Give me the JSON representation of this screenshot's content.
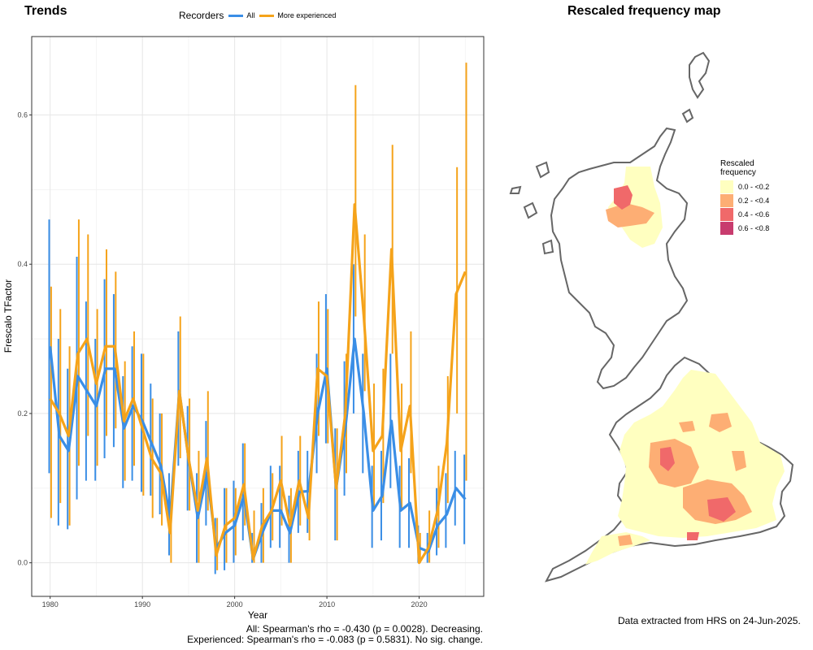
{
  "trends": {
    "title": "Trends",
    "legend_title": "Recorders",
    "legend_all": "All",
    "legend_exp": "More experienced",
    "stats_line1": "All: Spearman's rho = -0.430 (p = 0.0028). Decreasing.",
    "stats_line2": "Experienced: Spearman's rho = -0.083 (p = 0.5831). No sig. change."
  },
  "map": {
    "title": "Rescaled frequency map",
    "legend_title_1": "Rescaled",
    "legend_title_2": "frequency",
    "legend": [
      {
        "label": "0.0 - <0.2",
        "color": "#ffffc0"
      },
      {
        "label": "0.2 - <0.4",
        "color": "#fdae74"
      },
      {
        "label": "0.4 - <0.6",
        "color": "#f0696a"
      },
      {
        "label": "0.6 - <0.8",
        "color": "#c83c6e"
      }
    ],
    "source": "Data extracted from HRS on 24-Jun-2025."
  },
  "chart_data": {
    "type": "line",
    "xlabel": "Year",
    "ylabel": "Frescalo TFactor",
    "xlim": [
      1978,
      2027
    ],
    "ylim": [
      -0.045,
      0.705
    ],
    "xticks": [
      1980,
      1990,
      2000,
      2010,
      2020
    ],
    "yticks": [
      0.0,
      0.2,
      0.4,
      0.6
    ],
    "ytick_labels": [
      "0.0",
      "0.2",
      "0.4",
      "0.6"
    ],
    "grid": true,
    "legend_position": "top",
    "x": [
      1980,
      1981,
      1982,
      1983,
      1984,
      1985,
      1986,
      1987,
      1988,
      1989,
      1990,
      1991,
      1992,
      1993,
      1994,
      1995,
      1996,
      1997,
      1998,
      1999,
      2000,
      2001,
      2002,
      2003,
      2004,
      2005,
      2006,
      2007,
      2008,
      2009,
      2010,
      2011,
      2012,
      2013,
      2014,
      2015,
      2016,
      2017,
      2018,
      2019,
      2020,
      2021,
      2022,
      2023,
      2024,
      2025
    ],
    "series": [
      {
        "name": "All",
        "color": "#3a8ee6",
        "values": [
          0.29,
          0.17,
          0.15,
          0.25,
          0.23,
          0.21,
          0.26,
          0.26,
          0.18,
          0.21,
          0.19,
          0.16,
          0.13,
          0.06,
          0.23,
          0.14,
          0.06,
          0.12,
          0.02,
          0.04,
          0.05,
          0.09,
          0.005,
          0.04,
          0.07,
          0.07,
          0.04,
          0.095,
          0.096,
          0.2,
          0.26,
          0.1,
          0.18,
          0.3,
          0.2,
          0.07,
          0.09,
          0.19,
          0.07,
          0.08,
          0.02,
          0.015,
          0.05,
          0.065,
          0.1,
          0.085
        ],
        "lower": [
          0.12,
          0.05,
          0.045,
          0.085,
          0.11,
          0.11,
          0.14,
          0.155,
          0.1,
          0.11,
          0.095,
          0.09,
          0.065,
          0.01,
          0.13,
          0.07,
          0.0,
          0.05,
          -0.015,
          -0.01,
          0.0,
          0.03,
          0.0,
          0.0,
          0.02,
          0.02,
          0.0,
          0.04,
          0.04,
          0.12,
          0.16,
          0.03,
          0.09,
          0.2,
          0.12,
          0.02,
          0.03,
          0.1,
          0.02,
          0.02,
          0.0,
          0.0,
          0.01,
          0.02,
          0.05,
          0.025
        ],
        "upper": [
          0.46,
          0.3,
          0.26,
          0.41,
          0.35,
          0.3,
          0.38,
          0.36,
          0.25,
          0.29,
          0.28,
          0.24,
          0.2,
          0.12,
          0.31,
          0.21,
          0.12,
          0.19,
          0.06,
          0.1,
          0.11,
          0.16,
          0.04,
          0.08,
          0.13,
          0.13,
          0.09,
          0.15,
          0.15,
          0.28,
          0.36,
          0.18,
          0.27,
          0.4,
          0.28,
          0.13,
          0.15,
          0.28,
          0.13,
          0.14,
          0.05,
          0.04,
          0.1,
          0.12,
          0.15,
          0.145
        ]
      },
      {
        "name": "More experienced",
        "color": "#f5a31a",
        "values": [
          0.22,
          0.2,
          0.17,
          0.28,
          0.3,
          0.24,
          0.29,
          0.29,
          0.19,
          0.22,
          0.18,
          0.14,
          0.12,
          0.04,
          0.23,
          0.14,
          0.07,
          0.14,
          0.01,
          0.05,
          0.06,
          0.105,
          0.005,
          0.05,
          0.07,
          0.11,
          0.05,
          0.11,
          0.06,
          0.26,
          0.25,
          0.1,
          0.2,
          0.48,
          0.33,
          0.15,
          0.17,
          0.42,
          0.15,
          0.21,
          0.0,
          0.02,
          0.07,
          0.16,
          0.36,
          0.39
        ],
        "lower": [
          0.06,
          0.08,
          0.05,
          0.13,
          0.17,
          0.13,
          0.17,
          0.18,
          0.11,
          0.13,
          0.09,
          0.06,
          0.05,
          0.0,
          0.14,
          0.07,
          0.0,
          0.07,
          -0.01,
          0.0,
          0.01,
          0.05,
          0.0,
          0.0,
          0.03,
          0.05,
          0.0,
          0.05,
          0.03,
          0.17,
          0.16,
          0.03,
          0.12,
          0.33,
          0.23,
          0.07,
          0.08,
          0.28,
          0.07,
          0.12,
          0.0,
          0.0,
          0.02,
          0.08,
          0.2,
          0.11
        ],
        "upper": [
          0.37,
          0.34,
          0.29,
          0.46,
          0.44,
          0.34,
          0.42,
          0.39,
          0.27,
          0.31,
          0.28,
          0.22,
          0.2,
          0.09,
          0.33,
          0.22,
          0.15,
          0.23,
          0.06,
          0.1,
          0.1,
          0.16,
          0.07,
          0.1,
          0.12,
          0.17,
          0.1,
          0.17,
          0.1,
          0.35,
          0.34,
          0.18,
          0.28,
          0.64,
          0.44,
          0.24,
          0.26,
          0.56,
          0.24,
          0.31,
          0.04,
          0.07,
          0.13,
          0.25,
          0.53,
          0.67
        ]
      }
    ]
  }
}
